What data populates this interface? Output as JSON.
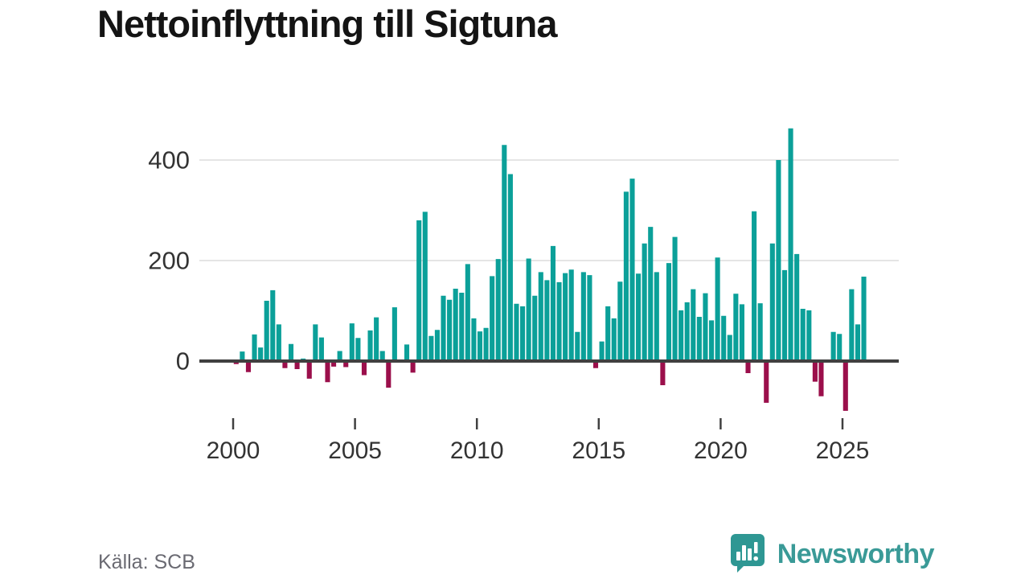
{
  "title": "Nettoinflyttning till Sigtuna",
  "source": "Källa: SCB",
  "branding": {
    "name": "Newsworthy",
    "color": "#3a9a97",
    "icon_color": "#2e9793"
  },
  "colors": {
    "positive_bar": "#0ba099",
    "negative_bar": "#9b0f4b",
    "gridline": "#e5e5e5",
    "zero_axis": "#404040",
    "tick_text": "#333333"
  },
  "chart_data": {
    "type": "bar",
    "title": "Nettoinflyttning till Sigtuna",
    "frequency": "quarterly",
    "start_period": "2000-Q1",
    "end_period": "2025-Q4",
    "xlabel": "",
    "ylabel": "",
    "grid": true,
    "legend": "none",
    "y_ticks": [
      0,
      200,
      400
    ],
    "y_tick_labels": [
      "0",
      "200",
      "400"
    ],
    "x_tick_years": [
      2000,
      2005,
      2010,
      2015,
      2020,
      2025
    ],
    "x_tick_labels": [
      "2000",
      "2005",
      "2010",
      "2015",
      "2020",
      "2025"
    ],
    "ylim": [
      -130,
      480
    ],
    "values": [
      -6,
      19,
      -22,
      53,
      27,
      120,
      141,
      73,
      -14,
      34,
      -16,
      5,
      -35,
      73,
      47,
      -42,
      -11,
      20,
      -12,
      75,
      46,
      -28,
      61,
      87,
      20,
      -53,
      107,
      0,
      33,
      -23,
      280,
      297,
      50,
      62,
      130,
      122,
      144,
      136,
      193,
      85,
      59,
      66,
      169,
      203,
      430,
      372,
      114,
      109,
      204,
      130,
      177,
      161,
      229,
      157,
      175,
      182,
      58,
      177,
      171,
      -14,
      39,
      109,
      85,
      158,
      337,
      363,
      174,
      234,
      267,
      177,
      -48,
      195,
      247,
      101,
      117,
      143,
      88,
      135,
      81,
      206,
      90,
      52,
      134,
      113,
      -24,
      298,
      115,
      -83,
      234,
      400,
      181,
      463,
      213,
      104,
      101,
      -41,
      -70,
      0,
      58,
      54,
      -99,
      143,
      73,
      168
    ]
  }
}
